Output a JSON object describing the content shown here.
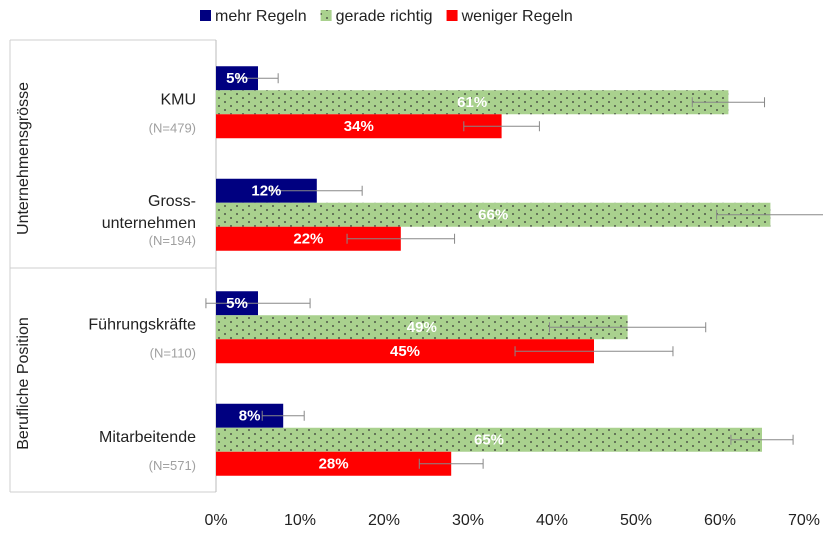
{
  "chart_data": {
    "type": "bar",
    "orientation": "horizontal",
    "groups": [
      "Unternehmensgrösse",
      "Berufliche Position"
    ],
    "categories": [
      [
        "KMU"
      ],
      [
        "Gross-",
        "unternehmen"
      ],
      [
        "Führungskräfte"
      ],
      [
        "Mitarbeitende"
      ]
    ],
    "n_labels": [
      "(N=479)",
      "(N=194)",
      "(N=110)",
      "(N=571)"
    ],
    "series": [
      {
        "name": "mehr Regeln",
        "color": "#000080",
        "values": [
          5,
          12,
          5,
          8
        ],
        "value_labels": [
          "5%",
          "12%",
          "5%",
          "8%"
        ],
        "errors": [
          2.4,
          5.4,
          6.2,
          2.5
        ]
      },
      {
        "name": "gerade richtig",
        "color": "#a9d18e",
        "pattern": "dots",
        "values": [
          61,
          66,
          49,
          65
        ],
        "value_labels": [
          "61%",
          "66%",
          "49%",
          "65%"
        ],
        "errors": [
          4.3,
          6.4,
          9.3,
          3.7
        ]
      },
      {
        "name": "weniger Regeln",
        "color": "#ff0000",
        "values": [
          34,
          22,
          45,
          28
        ],
        "value_labels": [
          "34%",
          "22%",
          "45%",
          "28%"
        ],
        "errors": [
          4.5,
          6.4,
          9.4,
          3.8
        ]
      }
    ],
    "xlim": [
      0,
      70
    ],
    "xticks": [
      {
        "value": 0,
        "label": "0%"
      },
      {
        "value": 10,
        "label": "10%"
      },
      {
        "value": 20,
        "label": "20%"
      },
      {
        "value": 30,
        "label": "30%"
      },
      {
        "value": 40,
        "label": "40%"
      },
      {
        "value": 50,
        "label": "50%"
      },
      {
        "value": 60,
        "label": "60%"
      },
      {
        "value": 70,
        "label": "70%"
      }
    ],
    "legend": "top"
  }
}
